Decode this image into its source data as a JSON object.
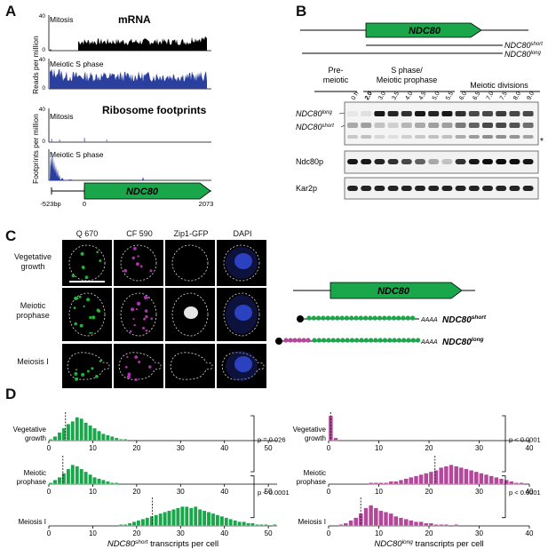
{
  "panels": {
    "A": "A",
    "B": "B",
    "C": "C",
    "D": "D"
  },
  "panelA": {
    "mrna_title": "mRNA",
    "ribo_title": "Ribosome footprints",
    "mrna_ylabel": "Reads per million",
    "ribo_ylabel": "Footprints per million",
    "track_mitosis": "Mitosis",
    "track_meiotic": "Meiotic S phase",
    "mrna_ticks": [
      "0",
      "40"
    ],
    "ribo_ticks": [
      "0",
      "40"
    ],
    "gene": "NDC80",
    "coords": [
      "-523bp",
      "0",
      "2073"
    ],
    "colors": {
      "mitosis": "#000000",
      "meiotic": "#2b3f9e",
      "gene": "#1aa64a"
    }
  },
  "panelB": {
    "gene": "NDC80",
    "iso_short": "NDC80",
    "iso_short_sup": "short",
    "iso_long": "NDC80",
    "iso_long_sup": "long",
    "stage_pre": "Pre-\nmeiotic",
    "stage_s": "S phase/\nMeiotic prophase",
    "stage_div": "Meiotic divisions",
    "timepoints": [
      "0 h",
      "2.0",
      "3.0",
      "3.5",
      "4.0",
      "4.5",
      "5.0",
      "5.5",
      "6.0",
      "6.5",
      "7.0",
      "7.5",
      "8.0",
      "9.0"
    ],
    "blot_labels": [
      "Ndc80p",
      "Kar2p"
    ],
    "asterisk": "*"
  },
  "panelC": {
    "columns": [
      "Q 670",
      "CF 590",
      "Zip1-GFP",
      "DAPI"
    ],
    "rows": [
      "Vegetative\ngrowth",
      "Meiotic\nprophase",
      "Meiosis I"
    ],
    "gene": "NDC80",
    "polyA": "AAAA",
    "label_short": "NDC80",
    "label_short_sup": "short",
    "label_long": "NDC80",
    "label_long_sup": "long"
  },
  "panelD": {
    "short": {
      "xlabel_pre": "NDC80",
      "xlabel_sup": "short",
      "xlabel_post": " transcripts per cell",
      "xticks": [
        "0",
        "10",
        "20",
        "30",
        "40",
        "50"
      ],
      "rows": [
        "Vegetative\ngrowth",
        "Meiotic\nprophase",
        "Meiosis I"
      ],
      "pvalues": [
        "p = 0.026",
        "p < 0.0001"
      ],
      "color": "#1aa64a"
    },
    "long": {
      "xlabel_pre": "NDC80",
      "xlabel_sup": "long",
      "xlabel_post": " transcripts per cell",
      "xticks": [
        "0",
        "10",
        "20",
        "30",
        "40"
      ],
      "rows": [
        "Vegetative\ngrowth",
        "Meiotic\nprophase",
        "Meiosis I"
      ],
      "pvalues": [
        "p < 0.0001",
        "p < 0.0001"
      ],
      "color": "#b5479b"
    }
  },
  "chart_data": [
    {
      "type": "bar",
      "series": [
        {
          "values": [
            1,
            3,
            6,
            9,
            12,
            14,
            17,
            16,
            13,
            11,
            9,
            7,
            5,
            4,
            3,
            2,
            1,
            1,
            0,
            0,
            0
          ]
        },
        {
          "values": [
            1,
            3,
            5,
            8,
            11,
            14,
            13,
            11,
            9,
            7,
            5,
            4,
            3,
            2,
            1,
            1,
            0,
            0,
            0,
            0,
            0
          ]
        },
        {
          "values": [
            0,
            0,
            0,
            0,
            0,
            0,
            0,
            0,
            0,
            0,
            0,
            0,
            0,
            0,
            0,
            0,
            1,
            1,
            2,
            3,
            4,
            5,
            6,
            7,
            8,
            9,
            10,
            11,
            12,
            13,
            14,
            14,
            13,
            14,
            12,
            11,
            10,
            9,
            8,
            7,
            6,
            5,
            4,
            3,
            3,
            2,
            2,
            1,
            1,
            1,
            0,
            1,
            0
          ]
        }
      ]
    },
    {
      "type": "bar",
      "series": [
        {
          "values": [
            18,
            2,
            0,
            0,
            0,
            0,
            0,
            0,
            0,
            0,
            0,
            0,
            0,
            0,
            0,
            0,
            0,
            0,
            0,
            0,
            0,
            0,
            0,
            0,
            0,
            0,
            0,
            0,
            0,
            0,
            0,
            0,
            0,
            0,
            0,
            0,
            0,
            0,
            0
          ]
        },
        {
          "values": [
            0,
            0,
            0,
            0,
            0,
            0,
            0,
            0,
            1,
            1,
            1,
            1,
            2,
            2,
            3,
            4,
            5,
            6,
            7,
            8,
            9,
            10,
            12,
            13,
            14,
            13,
            12,
            11,
            10,
            9,
            8,
            7,
            6,
            5,
            4,
            3,
            2,
            1,
            1
          ]
        },
        {
          "values": [
            0,
            0,
            1,
            2,
            4,
            6,
            9,
            13,
            15,
            13,
            11,
            10,
            9,
            7,
            6,
            5,
            4,
            3,
            3,
            2,
            2,
            1,
            1,
            1,
            0,
            1,
            0,
            0,
            0,
            0,
            0,
            0,
            0,
            0,
            0,
            0,
            0,
            0,
            0
          ]
        }
      ]
    }
  ]
}
